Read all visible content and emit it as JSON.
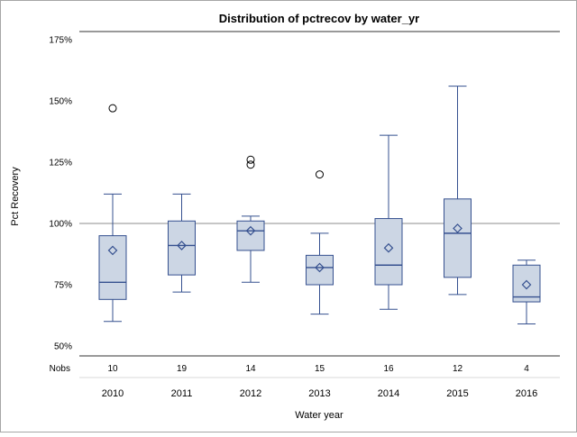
{
  "chart_data": {
    "type": "boxplot",
    "title": "Distribution of pctrecov by water_yr",
    "xlabel": "Water year",
    "ylabel": "Pct Recovery",
    "yticks": [
      {
        "value": 50,
        "label": "50%"
      },
      {
        "value": 75,
        "label": "75%"
      },
      {
        "value": 100,
        "label": "100%"
      },
      {
        "value": 125,
        "label": "125%"
      },
      {
        "value": 150,
        "label": "150%"
      },
      {
        "value": 175,
        "label": "175%"
      }
    ],
    "ylim": [
      44,
      180
    ],
    "refline_value": 100,
    "grid": "off",
    "nobs_label": "Nobs",
    "categories": [
      "2010",
      "2011",
      "2012",
      "2013",
      "2014",
      "2015",
      "2016"
    ],
    "nobs": [
      "10",
      "19",
      "14",
      "15",
      "16",
      "12",
      "4"
    ],
    "boxes": [
      {
        "category": "2010",
        "whisker_low": 60,
        "q1": 69,
        "median": 76,
        "q3": 95,
        "whisker_high": 112,
        "mean": 89,
        "outliers": [
          147
        ]
      },
      {
        "category": "2011",
        "whisker_low": 72,
        "q1": 79,
        "median": 91,
        "q3": 101,
        "whisker_high": 112,
        "mean": 91,
        "outliers": []
      },
      {
        "category": "2012",
        "whisker_low": 76,
        "q1": 89,
        "median": 97,
        "q3": 101,
        "whisker_high": 103,
        "mean": 97,
        "outliers": [
          124,
          126
        ]
      },
      {
        "category": "2013",
        "whisker_low": 63,
        "q1": 75,
        "median": 82,
        "q3": 87,
        "whisker_high": 96,
        "mean": 82,
        "outliers": [
          120
        ]
      },
      {
        "category": "2014",
        "whisker_low": 65,
        "q1": 75,
        "median": 83,
        "q3": 102,
        "whisker_high": 136,
        "mean": 90,
        "outliers": []
      },
      {
        "category": "2015",
        "whisker_low": 71,
        "q1": 78,
        "median": 96,
        "q3": 110,
        "whisker_high": 156,
        "mean": 98,
        "outliers": []
      },
      {
        "category": "2016",
        "whisker_low": 59,
        "q1": 68,
        "median": 70,
        "q3": 83,
        "whisker_high": 85,
        "mean": 75,
        "outliers": []
      }
    ],
    "colors": {
      "box_fill": "#ccd6e4",
      "box_stroke": "#35508f",
      "whisker": "#35508f",
      "median": "#35508f",
      "mean_marker": "#35508f",
      "outlier": "#000000",
      "refline": "#8c8c8c",
      "axis": "#333333",
      "nobs_separator": "#d9d9d9",
      "border": "#a6a6a6"
    }
  }
}
